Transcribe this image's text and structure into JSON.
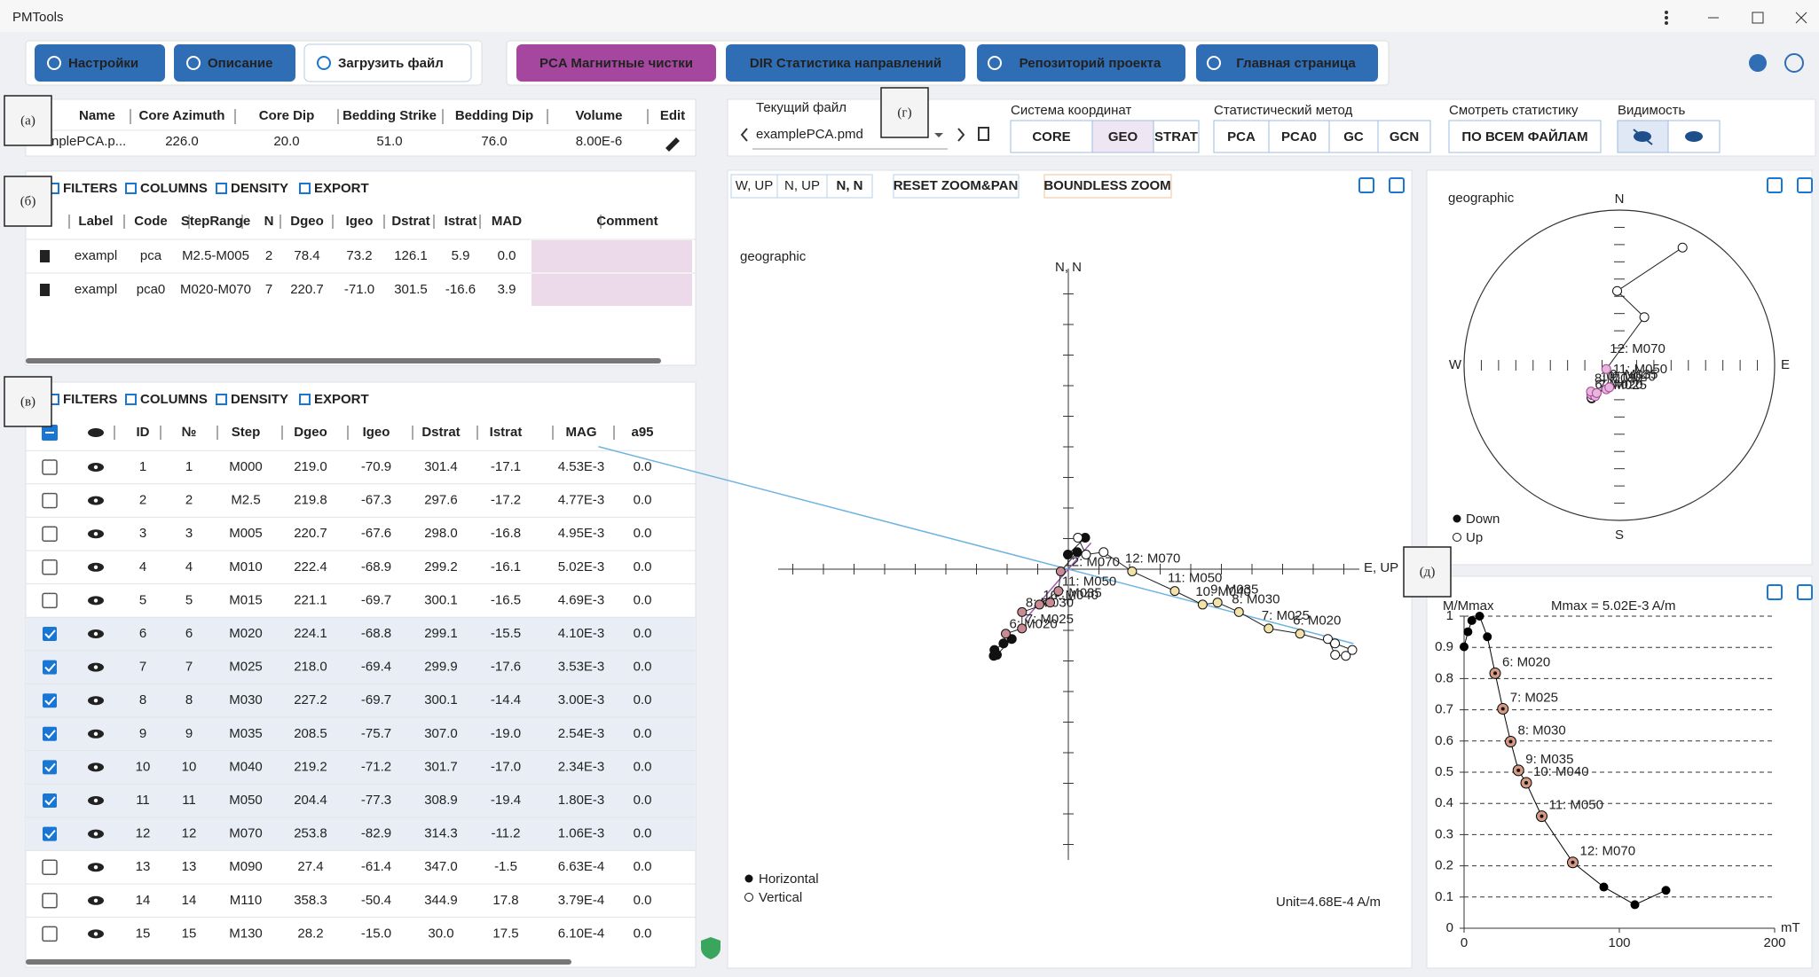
{
  "window": {
    "title": "PMTools"
  },
  "toolbar": {
    "buttons": [
      "Настройки",
      "Описание",
      "Загрузить файл"
    ],
    "tabs": [
      "PCA  Магнитные чистки",
      "DIR  Статистика направлений",
      "Репозиторий проекта",
      "Главная страница"
    ]
  },
  "annotations": [
    "(а)",
    "(б)",
    "(в)",
    "(г)",
    "(д)"
  ],
  "site_table": {
    "headers": [
      "Name",
      "Core Azimuth",
      "Core Dip",
      "Bedding Strike",
      "Bedding Dip",
      "Volume",
      "Edit"
    ],
    "row": [
      "nplePCA.p...",
      "226.0",
      "20.0",
      "51.0",
      "76.0",
      "8.00E-6"
    ]
  },
  "table_tools": [
    "FILTERS",
    "COLUMNS",
    "DENSITY",
    "EXPORT"
  ],
  "fits_table": {
    "headers": [
      "Label",
      "Code",
      "StepRange",
      "N",
      "Dgeo",
      "Igeo",
      "Dstrat",
      "Istrat",
      "MAD",
      "Comment"
    ],
    "rows": [
      [
        "exampl",
        "pca",
        "M2.5-M005",
        "2",
        "78.4",
        "73.2",
        "126.1",
        "5.9",
        "0.0"
      ],
      [
        "exampl",
        "pca0",
        "M020-M070",
        "7",
        "220.7",
        "-71.0",
        "301.5",
        "-16.6",
        "3.9"
      ]
    ]
  },
  "steps_table": {
    "headers": [
      "ID",
      "№",
      "Step",
      "Dgeo",
      "Igeo",
      "Dstrat",
      "Istrat",
      "MAG",
      "a95"
    ],
    "rows": [
      [
        "1",
        "1",
        "M000",
        "219.0",
        "-70.9",
        "301.4",
        "-17.1",
        "4.53E-3",
        "0.0"
      ],
      [
        "2",
        "2",
        "M2.5",
        "219.8",
        "-67.3",
        "297.6",
        "-17.2",
        "4.77E-3",
        "0.0"
      ],
      [
        "3",
        "3",
        "M005",
        "220.7",
        "-67.6",
        "298.0",
        "-16.8",
        "4.95E-3",
        "0.0"
      ],
      [
        "4",
        "4",
        "M010",
        "222.4",
        "-68.9",
        "299.2",
        "-16.1",
        "5.02E-3",
        "0.0"
      ],
      [
        "5",
        "5",
        "M015",
        "221.1",
        "-69.7",
        "300.1",
        "-16.5",
        "4.69E-3",
        "0.0"
      ],
      [
        "6",
        "6",
        "M020",
        "224.1",
        "-68.8",
        "299.1",
        "-15.5",
        "4.10E-3",
        "0.0"
      ],
      [
        "7",
        "7",
        "M025",
        "218.0",
        "-69.4",
        "299.9",
        "-17.6",
        "3.53E-3",
        "0.0"
      ],
      [
        "8",
        "8",
        "M030",
        "227.2",
        "-69.7",
        "300.1",
        "-14.4",
        "3.00E-3",
        "0.0"
      ],
      [
        "9",
        "9",
        "M035",
        "208.5",
        "-75.7",
        "307.0",
        "-19.0",
        "2.54E-3",
        "0.0"
      ],
      [
        "10",
        "10",
        "M040",
        "219.2",
        "-71.2",
        "301.7",
        "-17.0",
        "2.34E-3",
        "0.0"
      ],
      [
        "11",
        "11",
        "M050",
        "204.4",
        "-77.3",
        "308.9",
        "-19.4",
        "1.80E-3",
        "0.0"
      ],
      [
        "12",
        "12",
        "M070",
        "253.8",
        "-82.9",
        "314.3",
        "-11.2",
        "1.06E-3",
        "0.0"
      ],
      [
        "13",
        "13",
        "M090",
        "27.4",
        "-61.4",
        "347.0",
        "-1.5",
        "6.63E-4",
        "0.0"
      ],
      [
        "14",
        "14",
        "M110",
        "358.3",
        "-50.4",
        "344.9",
        "17.8",
        "3.79E-4",
        "0.0"
      ],
      [
        "15",
        "15",
        "M130",
        "28.2",
        "-15.0",
        "30.0",
        "17.5",
        "6.10E-4",
        "0.0"
      ]
    ],
    "selected": [
      false,
      false,
      false,
      false,
      false,
      true,
      true,
      true,
      true,
      true,
      true,
      true,
      false,
      false,
      false
    ]
  },
  "file_bar": {
    "file_label": "Текущий файл",
    "file": "examplePCA.pmd",
    "coord_label": "Система координат",
    "coords": [
      "CORE",
      "GEO",
      "STRAT"
    ],
    "active_coord": 1,
    "method_label": "Статистический метод",
    "methods": [
      "PCA",
      "PCA0",
      "GC",
      "GCN"
    ],
    "stats_label": "Смотреть статистику",
    "stats_button": "ПО ВСЕМ ФАЙЛАМ",
    "visibility_label": "Видимость"
  },
  "point_labels": [
    "6: M020",
    "7: M025",
    "8: M030",
    "9: M035",
    "10: M040",
    "11: M050",
    "12: M070"
  ],
  "zijderveld": {
    "projections": [
      "W, UP",
      "N, UP",
      "N, N"
    ],
    "active_projection": 2,
    "reset": "RESET ZOOM&PAN",
    "boundless": "BOUNDLESS ZOOM",
    "title": "geographic",
    "axis_n": "N, N",
    "axis_e": "E, UP",
    "legend": [
      "Horizontal",
      "Vertical"
    ],
    "unit": "Unit=4.68E-4 A/m"
  },
  "stereonet": {
    "title": "geographic",
    "north": "N",
    "south": "S",
    "west": "W",
    "east": "E",
    "legend": [
      "Down",
      "Up"
    ]
  },
  "chart_data": {
    "type": "line",
    "title": "Mmax = 5.02E-3 A/m",
    "y_label": "M/Mmax",
    "x_label": "mT",
    "x": [
      0,
      2.5,
      5,
      10,
      15,
      20,
      25,
      30,
      35,
      40,
      50,
      70,
      90,
      110,
      130
    ],
    "values": [
      0.902,
      0.95,
      0.986,
      1.0,
      0.934,
      0.817,
      0.703,
      0.598,
      0.506,
      0.466,
      0.359,
      0.211,
      0.132,
      0.0755,
      0.1215
    ],
    "xlim": [
      0,
      200
    ],
    "ylim": [
      0,
      1
    ],
    "xticks": [
      0,
      100,
      200
    ],
    "yticks": [
      0,
      0.1,
      0.2,
      0.3,
      0.4,
      0.5,
      0.6,
      0.7,
      0.8,
      0.9,
      1
    ],
    "grid": true,
    "color": "#000000"
  }
}
